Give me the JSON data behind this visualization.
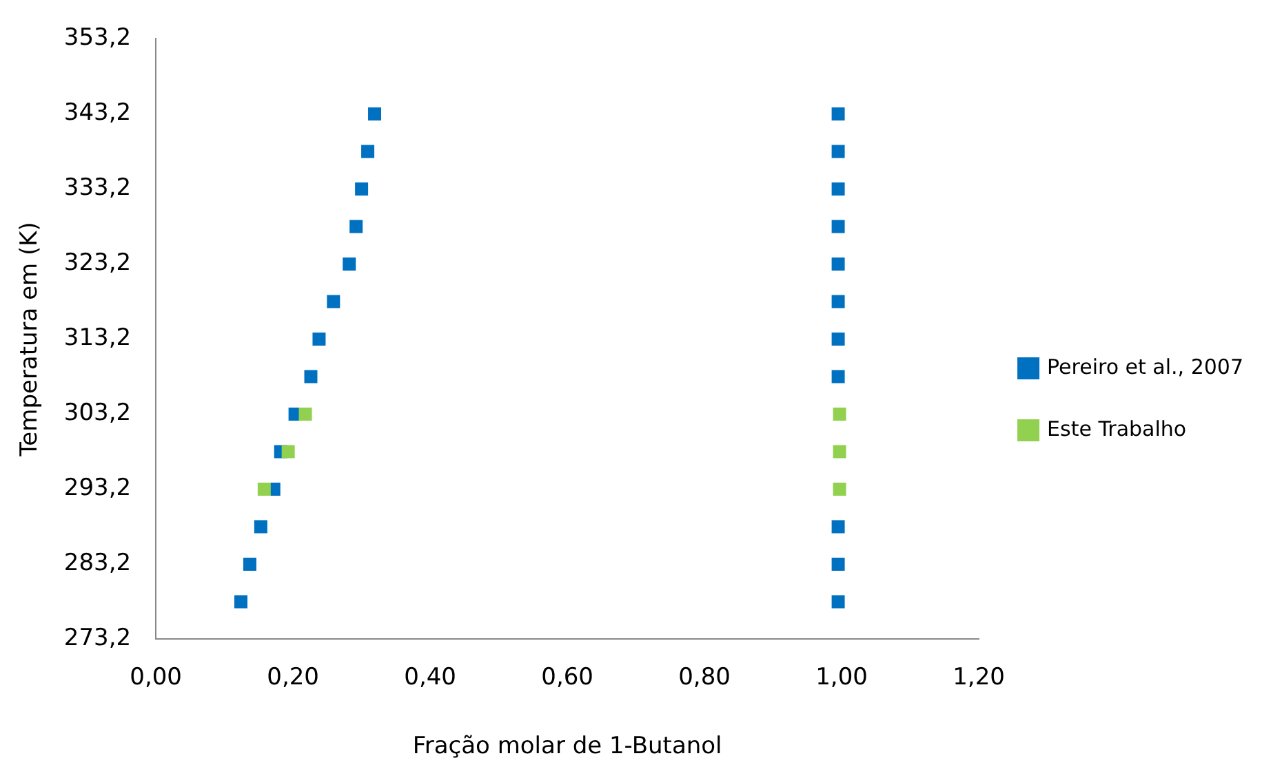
{
  "chart_data": {
    "type": "scatter",
    "xlabel": "Fração molar de 1-Butanol",
    "ylabel": "Temperatura em (K)",
    "xlim": [
      0,
      1.2
    ],
    "ylim": [
      273.2,
      353.2
    ],
    "xticks": [
      {
        "value": 0,
        "label": "0,00"
      },
      {
        "value": 0.2,
        "label": "0,20"
      },
      {
        "value": 0.4,
        "label": "0,40"
      },
      {
        "value": 0.6,
        "label": "0,60"
      },
      {
        "value": 0.8,
        "label": "0,80"
      },
      {
        "value": 1,
        "label": "1,00"
      },
      {
        "value": 1.2,
        "label": "1,20"
      }
    ],
    "yticks": [
      {
        "value": 273.2,
        "label": "273,2"
      },
      {
        "value": 283.2,
        "label": "283,2"
      },
      {
        "value": 293.2,
        "label": "293,2"
      },
      {
        "value": 303.2,
        "label": "303,2"
      },
      {
        "value": 313.2,
        "label": "313,2"
      },
      {
        "value": 323.2,
        "label": "323,2"
      },
      {
        "value": 333.2,
        "label": "333,2"
      },
      {
        "value": 343.2,
        "label": "343,2"
      },
      {
        "value": 353.2,
        "label": "353,2"
      }
    ],
    "grid": false,
    "legend": "right",
    "marker": "square",
    "series": [
      {
        "name": "Pereiro et al., 2007",
        "color": "#0070c0",
        "x": [
          0.124,
          0.137,
          0.153,
          0.172,
          0.182,
          0.203,
          0.226,
          0.238,
          0.259,
          0.282,
          0.292,
          0.3,
          0.309,
          0.319,
          0.995,
          0.995,
          0.995,
          null,
          null,
          null,
          0.995,
          0.995,
          0.995,
          0.995,
          0.995,
          0.995,
          0.995,
          0.995
        ],
        "values": [
          278.2,
          283.2,
          288.2,
          293.2,
          298.2,
          303.2,
          308.2,
          313.2,
          318.2,
          323.2,
          328.2,
          333.2,
          338.2,
          343.2,
          278.2,
          283.2,
          288.2,
          null,
          null,
          null,
          308.2,
          313.2,
          318.2,
          323.2,
          328.2,
          333.2,
          338.2,
          343.2
        ]
      },
      {
        "name": "Este Trabalho",
        "color": "#92d050",
        "x": [
          0.158,
          0.193,
          0.218,
          0.997,
          0.997,
          0.997
        ],
        "values": [
          293.2,
          298.2,
          303.2,
          293.2,
          298.2,
          303.2
        ]
      }
    ]
  }
}
